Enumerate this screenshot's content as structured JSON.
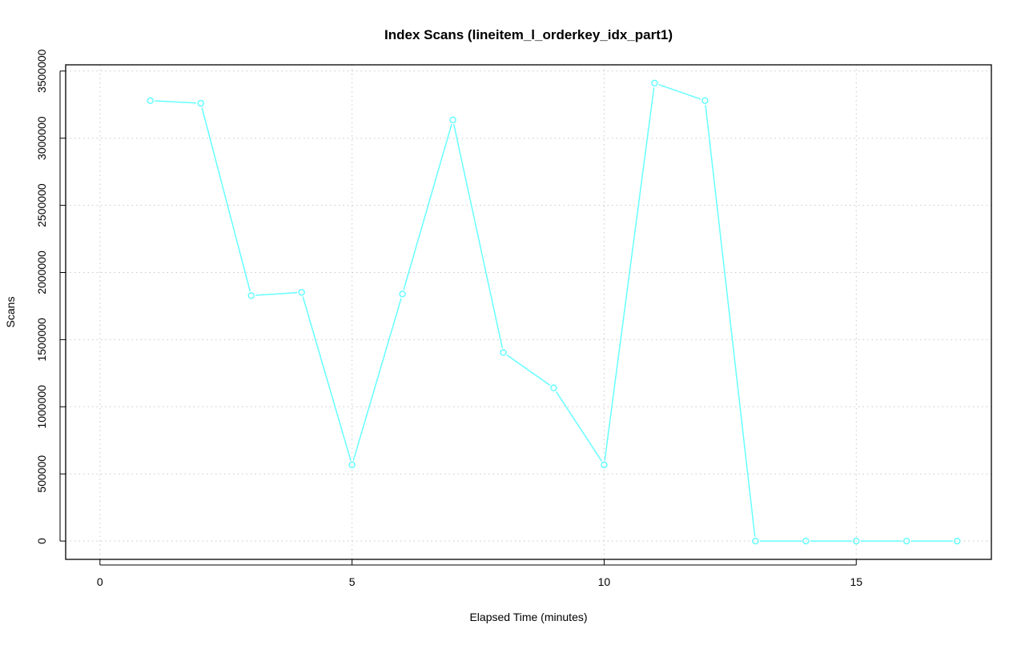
{
  "chart_data": {
    "type": "line",
    "title": "Index Scans (lineitem_l_orderkey_idx_part1)",
    "xlabel": "Elapsed Time (minutes)",
    "ylabel": "Scans",
    "x": [
      1,
      2,
      3,
      4,
      5,
      6,
      7,
      8,
      9,
      10,
      11,
      12,
      13,
      14,
      15,
      16,
      17
    ],
    "values": [
      3280000,
      3260000,
      1828000,
      1852000,
      567000,
      1840000,
      3136000,
      1404000,
      1141000,
      567000,
      3410000,
      3280000,
      0,
      0,
      0,
      0,
      0
    ],
    "xlim": [
      0,
      17
    ],
    "ylim": [
      0,
      3410000
    ],
    "xticks": [
      0,
      5,
      10,
      15
    ],
    "yticks": [
      0,
      500000,
      1000000,
      1500000,
      2000000,
      2500000,
      3000000,
      3500000
    ],
    "grid": true,
    "series_color": "#66ffff",
    "markers": "open-circle"
  }
}
